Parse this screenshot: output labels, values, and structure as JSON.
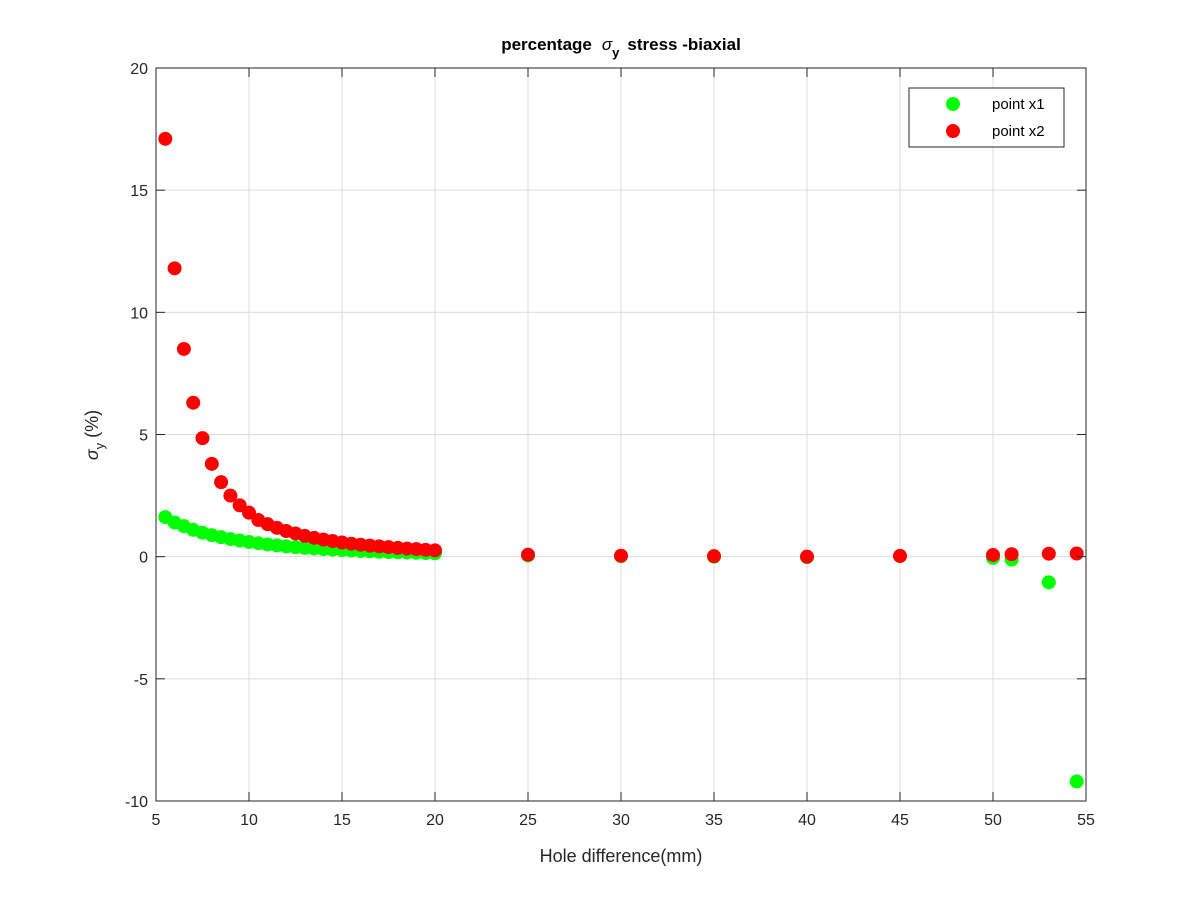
{
  "chart_data": {
    "type": "scatter",
    "title": {
      "prefix": "percentage",
      "symbol": "σ",
      "subscript": "y",
      "suffix": "stress -biaxial"
    },
    "xlabel": "Hole difference(mm)",
    "ylabel": {
      "symbol": "σ",
      "subscript": "y",
      "unit": "(%)"
    },
    "xlim": [
      5,
      55
    ],
    "ylim": [
      -10,
      20
    ],
    "xticks": [
      5,
      10,
      15,
      20,
      25,
      30,
      35,
      40,
      45,
      50,
      55
    ],
    "yticks": [
      -10,
      -5,
      0,
      5,
      10,
      15,
      20
    ],
    "grid": true,
    "legend_position": "top-right",
    "series": [
      {
        "name": "point x1",
        "color": "#00ff00",
        "x": [
          5.5,
          6,
          6.5,
          7,
          7.5,
          8,
          8.5,
          9,
          9.5,
          10,
          10.5,
          11,
          11.5,
          12,
          12.5,
          13,
          13.5,
          14,
          14.5,
          15,
          15.5,
          16,
          16.5,
          17,
          17.5,
          18,
          18.5,
          19,
          19.5,
          20,
          25,
          30,
          35,
          40,
          45,
          50,
          51,
          53,
          54.5
        ],
        "y": [
          1.62,
          1.4,
          1.25,
          1.1,
          0.98,
          0.88,
          0.8,
          0.72,
          0.66,
          0.6,
          0.55,
          0.5,
          0.46,
          0.42,
          0.39,
          0.36,
          0.33,
          0.31,
          0.29,
          0.27,
          0.25,
          0.23,
          0.22,
          0.2,
          0.19,
          0.18,
          0.17,
          0.16,
          0.15,
          0.14,
          0.05,
          0.02,
          0.0,
          -0.02,
          0.02,
          -0.05,
          -0.12,
          -1.05,
          -9.2
        ]
      },
      {
        "name": "point x2",
        "color": "#ff0000",
        "x": [
          5.5,
          6,
          6.5,
          7,
          7.5,
          8,
          8.5,
          9,
          9.5,
          10,
          10.5,
          11,
          11.5,
          12,
          12.5,
          13,
          13.5,
          14,
          14.5,
          15,
          15.5,
          16,
          16.5,
          17,
          17.5,
          18,
          18.5,
          19,
          19.5,
          20,
          25,
          30,
          35,
          40,
          45,
          50,
          51,
          53,
          54.5
        ],
        "y": [
          17.1,
          11.8,
          8.5,
          6.3,
          4.85,
          3.8,
          3.05,
          2.5,
          2.1,
          1.8,
          1.5,
          1.33,
          1.18,
          1.05,
          0.95,
          0.85,
          0.77,
          0.7,
          0.64,
          0.58,
          0.53,
          0.49,
          0.45,
          0.42,
          0.39,
          0.36,
          0.33,
          0.31,
          0.28,
          0.26,
          0.08,
          0.04,
          0.02,
          0.0,
          0.03,
          0.07,
          0.1,
          0.12,
          0.13
        ]
      }
    ]
  }
}
